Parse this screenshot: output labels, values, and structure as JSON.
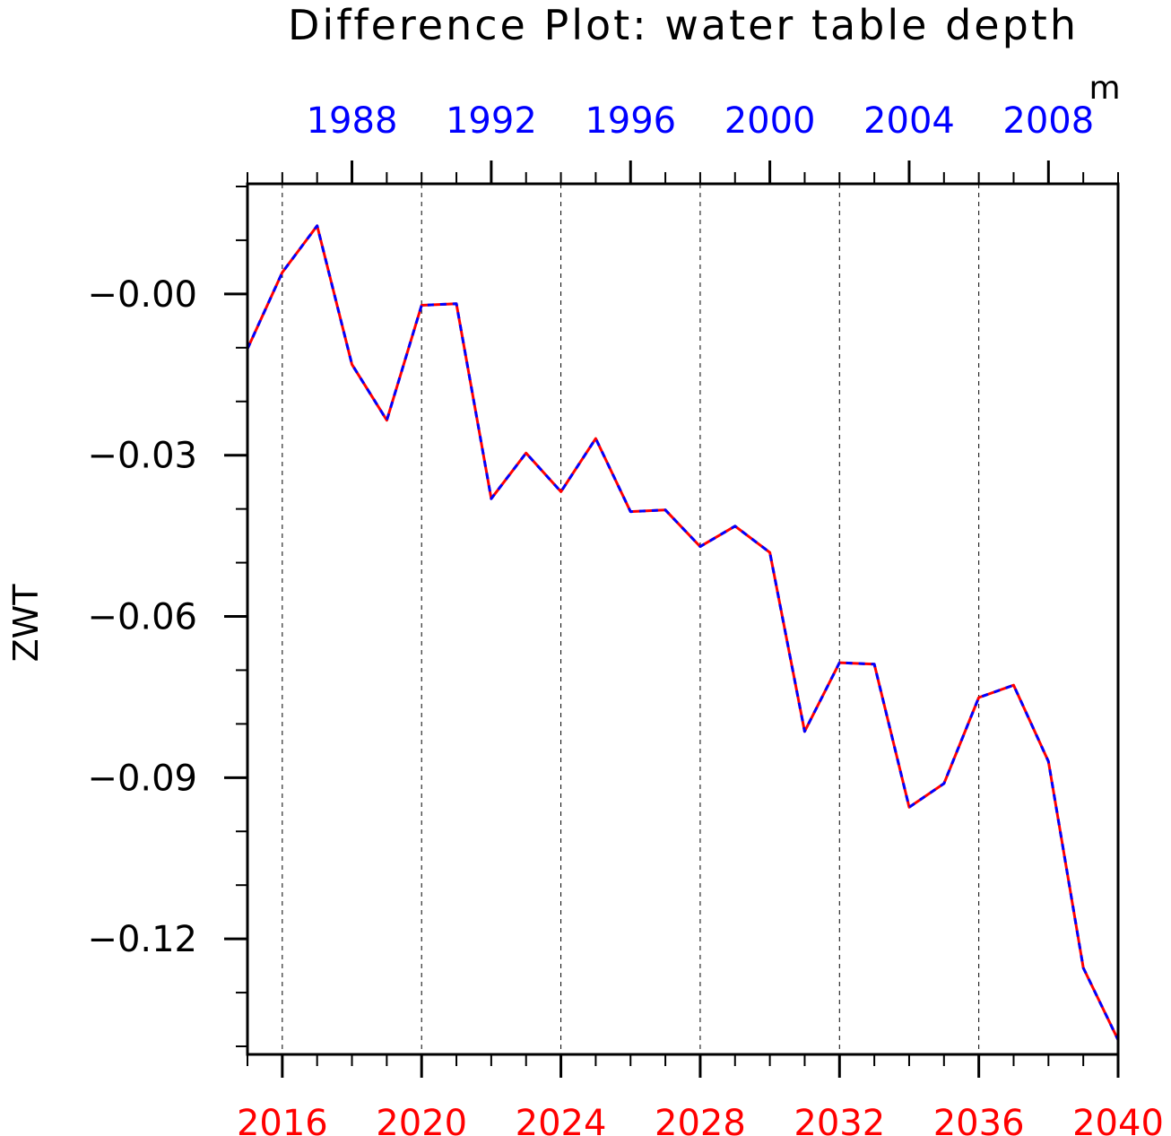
{
  "chart_data": {
    "type": "line",
    "title": "Difference Plot: water table depth",
    "units": "m",
    "ylabel": "ZWT",
    "ylim": [
      -0.1415,
      0.0205
    ],
    "y_ticks": [
      -0.12,
      -0.09,
      -0.06,
      -0.03,
      -0.0
    ],
    "y_tick_labels": [
      "−0.12",
      "−0.09",
      "−0.06",
      "−0.03",
      "−0.00"
    ],
    "y_minor_step": 0.01,
    "x_bottom": {
      "label_color": "#ff0000",
      "range": [
        2015,
        2040
      ],
      "ticks": [
        2016,
        2020,
        2024,
        2028,
        2032,
        2036,
        2040
      ],
      "tick_labels": [
        "2016",
        "2020",
        "2024",
        "2028",
        "2032",
        "2036",
        "2040"
      ]
    },
    "x_top": {
      "label_color": "#0000ff",
      "range": [
        1985,
        2010
      ],
      "ticks": [
        1988,
        1992,
        1996,
        2000,
        2004,
        2008
      ],
      "tick_labels": [
        "1988",
        "1992",
        "1996",
        "2000",
        "2004",
        "2008"
      ]
    },
    "grid": "vertical dashed at bottom major ticks",
    "x": [
      2015,
      2016,
      2017,
      2018,
      2019,
      2020,
      2021,
      2022,
      2023,
      2024,
      2025,
      2026,
      2027,
      2028,
      2029,
      2030,
      2031,
      2032,
      2033,
      2034,
      2035,
      2036,
      2037,
      2038,
      2039,
      2040
    ],
    "series": [
      {
        "color": "#ff0000",
        "values": [
          -0.0102,
          0.004,
          0.0127,
          -0.0131,
          -0.0235,
          -0.0021,
          -0.0018,
          -0.0381,
          -0.0296,
          -0.0368,
          -0.0269,
          -0.0405,
          -0.0402,
          -0.047,
          -0.0432,
          -0.0481,
          -0.0814,
          -0.0686,
          -0.0689,
          -0.0955,
          -0.0911,
          -0.0751,
          -0.0728,
          -0.087,
          -0.1254,
          -0.1388
        ]
      },
      {
        "color": "#0000ff",
        "values": [
          -0.0102,
          0.004,
          0.0127,
          -0.0131,
          -0.0235,
          -0.0021,
          -0.0018,
          -0.0381,
          -0.0296,
          -0.0368,
          -0.0269,
          -0.0405,
          -0.0402,
          -0.047,
          -0.0432,
          -0.0481,
          -0.0814,
          -0.0686,
          -0.0689,
          -0.0955,
          -0.0911,
          -0.0751,
          -0.0728,
          -0.087,
          -0.1254,
          -0.1388
        ]
      }
    ]
  }
}
